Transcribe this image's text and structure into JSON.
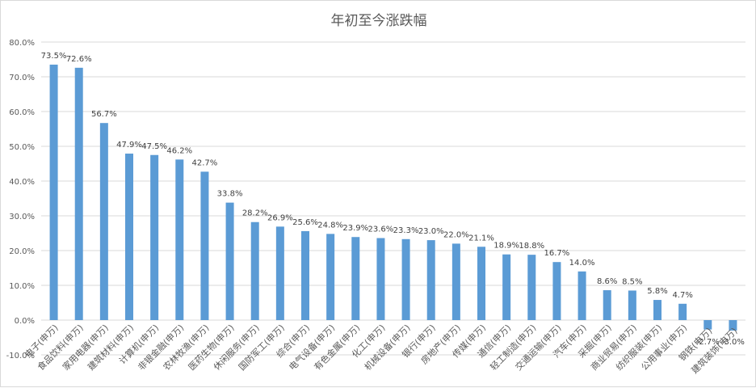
{
  "chart_data": {
    "type": "bar",
    "title": "年初至今涨跌幅",
    "xlabel": "",
    "ylabel": "",
    "ylim": [
      -10,
      80
    ],
    "yticks": [
      -10,
      0,
      10,
      20,
      30,
      40,
      50,
      60,
      70,
      80
    ],
    "ytick_labels": [
      "-10.0%",
      "0.0%",
      "10.0%",
      "20.0%",
      "30.0%",
      "40.0%",
      "50.0%",
      "60.0%",
      "70.0%",
      "80.0%"
    ],
    "grid": true,
    "legend": "none",
    "bar_color": "#5b9bd5",
    "categories": [
      "电子(申万)",
      "食品饮料(申万)",
      "家用电器(申万)",
      "建筑材料(申万)",
      "计算机(申万)",
      "非银金融(申万)",
      "农林牧渔(申万)",
      "医药生物(申万)",
      "休闲服务(申万)",
      "国防军工(申万)",
      "综合(申万)",
      "电气设备(申万)",
      "有色金属(申万)",
      "化工(申万)",
      "机械设备(申万)",
      "银行(申万)",
      "房地产(申万)",
      "传媒(申万)",
      "通信(申万)",
      "轻工制造(申万)",
      "交通运输(申万)",
      "汽车(申万)",
      "采掘(申万)",
      "商业贸易(申万)",
      "纺织服装(申万)",
      "公用事业(申万)",
      "钢铁(申万)",
      "建筑装饰(申万)"
    ],
    "values": [
      73.5,
      72.6,
      56.7,
      47.9,
      47.5,
      46.2,
      42.7,
      33.8,
      28.2,
      26.9,
      25.6,
      24.8,
      23.9,
      23.6,
      23.3,
      23.0,
      22.0,
      21.1,
      18.9,
      18.8,
      16.7,
      14.0,
      8.6,
      8.5,
      5.8,
      4.7,
      -2.7,
      -3.0
    ],
    "value_labels": [
      "73.5%",
      "72.6%",
      "56.7%",
      "47.9%",
      "47.5%",
      "46.2%",
      "42.7%",
      "33.8%",
      "28.2%",
      "26.9%",
      "25.6%",
      "24.8%",
      "23.9%",
      "23.6%",
      "23.3%",
      "23.0%",
      "22.0%",
      "21.1%",
      "18.9%",
      "18.8%",
      "16.7%",
      "14.0%",
      "8.6%",
      "8.5%",
      "5.8%",
      "4.7%",
      "-2.7%",
      "-3.0%"
    ]
  }
}
